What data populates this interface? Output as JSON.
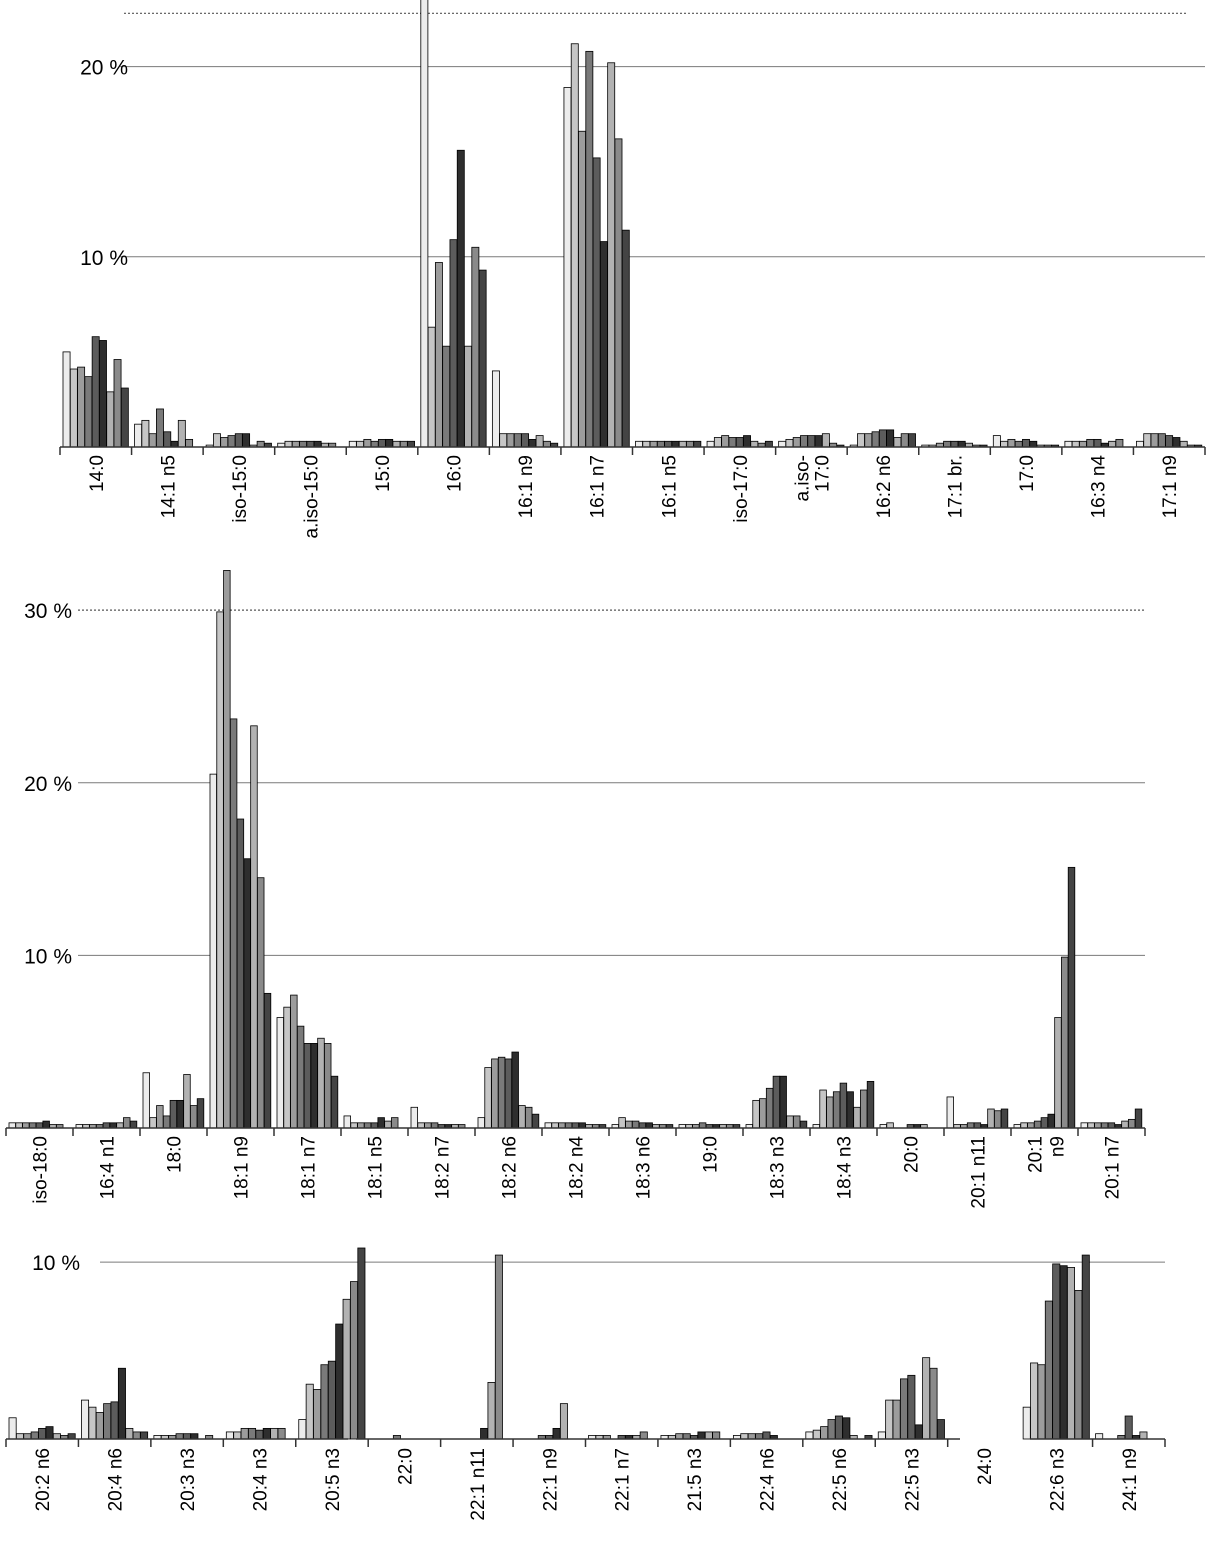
{
  "chart_data": [
    {
      "type": "bar",
      "title": "",
      "xlabel": "",
      "ylabel": "",
      "ylim": [
        0,
        23.5
      ],
      "y_ticks": [
        {
          "value": 10,
          "label": "10 %"
        },
        {
          "value": 20,
          "label": "20 %"
        }
      ],
      "dotted_line_value": 22.8,
      "grid": "horizontal at 10 %",
      "legend": "none",
      "categories": [
        "14:0",
        "14:1 n5",
        "iso-15:0",
        "a.iso-15:0",
        "15:0",
        "16:0",
        "16:1 n9",
        "16:1 n7",
        "16:1 n5",
        "iso-17:0",
        "a.iso-\n17:0",
        "16:2 n6",
        "17:1 br.",
        "17:0",
        "16:3 n4",
        "17:1 n9"
      ],
      "values": [
        [
          5.0,
          4.1,
          4.2,
          3.7,
          5.8,
          5.6,
          2.9,
          4.6,
          3.1
        ],
        [
          1.2,
          1.4,
          0.7,
          2.0,
          0.8,
          0.3,
          1.4,
          0.4
        ],
        [
          0.1,
          0.7,
          0.5,
          0.6,
          0.7,
          0.7,
          0.1,
          0.3,
          0.2
        ],
        [
          0.2,
          0.3,
          0.3,
          0.3,
          0.3,
          0.3,
          0.2,
          0.2
        ],
        [
          0.3,
          0.3,
          0.4,
          0.3,
          0.4,
          0.4,
          0.3,
          0.3,
          0.3
        ],
        [
          24.0,
          6.3,
          9.7,
          5.3,
          10.9,
          15.6,
          5.3,
          10.5,
          9.3
        ],
        [
          4.0,
          0.7,
          0.7,
          0.7,
          0.7,
          0.4,
          0.6,
          0.3,
          0.2
        ],
        [
          18.9,
          21.2,
          16.6,
          20.8,
          15.2,
          10.8,
          20.2,
          16.2,
          11.4
        ],
        [
          0.3,
          0.3,
          0.3,
          0.3,
          0.3,
          0.3,
          0.3,
          0.3,
          0.3
        ],
        [
          0.3,
          0.5,
          0.6,
          0.5,
          0.5,
          0.6,
          0.3,
          0.2,
          0.3
        ],
        [
          0.3,
          0.4,
          0.5,
          0.6,
          0.6,
          0.6,
          0.7,
          0.2,
          0.1
        ],
        [
          0.1,
          0.7,
          0.7,
          0.8,
          0.9,
          0.9,
          0.5,
          0.7,
          0.7
        ],
        [
          0.1,
          0.1,
          0.2,
          0.3,
          0.3,
          0.3,
          0.2,
          0.1,
          0.1
        ],
        [
          0.6,
          0.3,
          0.4,
          0.3,
          0.4,
          0.3,
          0.1,
          0.1,
          0.1
        ],
        [
          0.3,
          0.3,
          0.3,
          0.4,
          0.4,
          0.2,
          0.3,
          0.4
        ],
        [
          0.3,
          0.7,
          0.7,
          0.7,
          0.6,
          0.5,
          0.3,
          0.1,
          0.1
        ]
      ]
    },
    {
      "type": "bar",
      "title": "",
      "xlabel": "",
      "ylabel": "",
      "ylim": [
        0,
        32.5
      ],
      "y_ticks": [
        {
          "value": 10,
          "label": "10 %"
        },
        {
          "value": 20,
          "label": "20 %"
        },
        {
          "value": 30,
          "label": "30 %"
        }
      ],
      "dotted_line_value": 30,
      "grid": "horizontal at 10 % and 20 %",
      "legend": "none",
      "categories": [
        "iso-18:0",
        "16:4 n1",
        "18:0",
        "18:1 n9",
        "18:1 n7",
        "18:1 n5",
        "18:2 n7",
        "18:2 n6",
        "18:2 n4",
        "18:3 n6",
        "19:0",
        "18:3 n3",
        "18:4 n3",
        "20:0",
        "20:1 n11",
        "20:1\nn9",
        "20:1 n7"
      ],
      "values": [
        [
          0.3,
          0.3,
          0.3,
          0.3,
          0.3,
          0.4,
          0.2,
          0.2
        ],
        [
          0.2,
          0.2,
          0.2,
          0.2,
          0.3,
          0.3,
          0.3,
          0.6,
          0.4
        ],
        [
          3.2,
          0.6,
          1.3,
          0.7,
          1.6,
          1.6,
          3.1,
          1.3,
          1.7
        ],
        [
          20.5,
          29.9,
          32.3,
          23.7,
          17.9,
          15.6,
          23.3,
          14.5,
          7.8
        ],
        [
          6.4,
          7.0,
          7.7,
          5.9,
          4.9,
          4.9,
          5.2,
          4.9,
          3.0
        ],
        [
          0.7,
          0.3,
          0.3,
          0.3,
          0.3,
          0.6,
          0.4,
          0.6
        ],
        [
          1.2,
          0.3,
          0.3,
          0.3,
          0.2,
          0.2,
          0.2,
          0.2
        ],
        [
          0.6,
          3.5,
          4.0,
          4.1,
          4.0,
          4.4,
          1.3,
          1.2,
          0.8
        ],
        [
          0.3,
          0.3,
          0.3,
          0.3,
          0.3,
          0.3,
          0.2,
          0.2,
          0.2
        ],
        [
          0.2,
          0.6,
          0.4,
          0.4,
          0.3,
          0.3,
          0.2,
          0.2,
          0.2
        ],
        [
          0.2,
          0.2,
          0.2,
          0.3,
          0.2,
          0.2,
          0.2,
          0.2,
          0.2
        ],
        [
          0.2,
          1.6,
          1.7,
          2.3,
          3.0,
          3.0,
          0.7,
          0.7,
          0.4
        ],
        [
          0.2,
          2.2,
          1.8,
          2.1,
          2.6,
          2.1,
          1.2,
          2.2,
          2.7
        ],
        [
          0.2,
          0.3,
          0.0,
          0.0,
          0.2,
          0.2,
          0.2,
          0.0,
          0.0
        ],
        [
          1.8,
          0.2,
          0.2,
          0.3,
          0.3,
          0.2,
          1.1,
          1.0,
          1.1
        ],
        [
          0.2,
          0.3,
          0.3,
          0.4,
          0.6,
          0.8,
          6.4,
          9.9,
          15.1
        ],
        [
          0.3,
          0.3,
          0.3,
          0.3,
          0.3,
          0.2,
          0.4,
          0.5,
          1.1
        ]
      ]
    },
    {
      "type": "bar",
      "title": "",
      "xlabel": "",
      "ylabel": "",
      "ylim": [
        0,
        10.8
      ],
      "y_ticks": [
        {
          "value": 10,
          "label": "10 %"
        }
      ],
      "grid": "horizontal at 10 %",
      "legend": "none",
      "categories": [
        "20:2 n6",
        "20:4 n6",
        "20:3 n3",
        "20:4 n3",
        "20:5 n3",
        "22:0",
        "22:1 n11",
        "22:1 n9",
        "22:1 n7",
        "21:5 n3",
        "22:4 n6",
        "22:5 n6",
        "22:5 n3",
        "24:0",
        "22:6 n3",
        "24:1 n9"
      ],
      "values": [
        [
          1.2,
          0.3,
          0.3,
          0.4,
          0.6,
          0.7,
          0.3,
          0.2,
          0.3
        ],
        [
          2.2,
          1.8,
          1.5,
          2.0,
          2.1,
          4.0,
          0.6,
          0.4,
          0.4
        ],
        [
          0.2,
          0.2,
          0.2,
          0.3,
          0.3,
          0.3,
          0.0,
          0.2
        ],
        [
          0.4,
          0.4,
          0.6,
          0.6,
          0.5,
          0.6,
          0.6,
          0.6
        ],
        [
          1.1,
          3.1,
          2.8,
          4.2,
          4.4,
          6.5,
          7.9,
          8.9,
          10.8
        ],
        [
          0.0,
          0.0,
          0.0,
          0.2,
          0.0,
          0.0,
          0.0,
          0.0,
          0.0
        ],
        [
          0.0,
          0.0,
          0.0,
          0.0,
          0.0,
          0.6,
          3.2,
          10.4
        ],
        [
          0.0,
          0.0,
          0.0,
          0.2,
          0.2,
          0.6,
          2.0
        ],
        [
          0.2,
          0.2,
          0.2,
          0.0,
          0.2,
          0.2,
          0.2,
          0.4
        ],
        [
          0.2,
          0.2,
          0.3,
          0.3,
          0.2,
          0.4,
          0.4,
          0.4
        ],
        [
          0.2,
          0.3,
          0.3,
          0.3,
          0.4,
          0.2
        ],
        [
          0.4,
          0.5,
          0.7,
          1.1,
          1.3,
          1.2,
          0.2,
          0.0,
          0.2
        ],
        [
          0.4,
          2.2,
          2.2,
          3.4,
          3.6,
          0.8,
          4.6,
          4.0,
          1.1
        ],
        [
          0.0
        ],
        [
          1.8,
          4.3,
          4.2,
          7.8,
          9.9,
          9.8,
          9.7,
          8.4,
          10.4
        ],
        [
          0.3,
          0.0,
          0.0,
          0.2,
          1.3,
          0.2,
          0.4
        ]
      ]
    }
  ]
}
